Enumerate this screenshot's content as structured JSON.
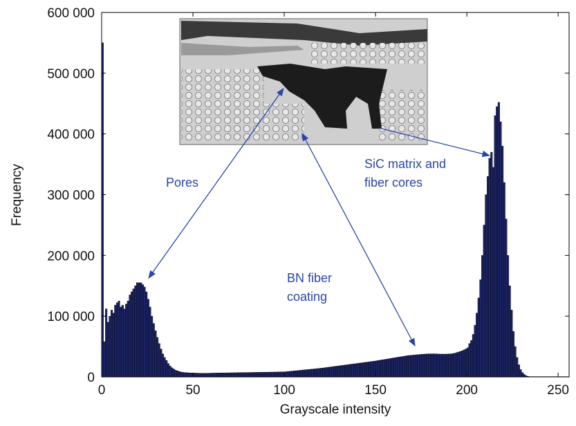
{
  "chart_data": {
    "type": "histogram",
    "xlabel": "Grayscale intensity",
    "ylabel": "Frequency",
    "color": "#1c2466",
    "bins": [
      0,
      1,
      2,
      3,
      4,
      5,
      6,
      7,
      8,
      9,
      10,
      11,
      12,
      13,
      14,
      15,
      16,
      17,
      18,
      19,
      20,
      21,
      22,
      23,
      24,
      25,
      26,
      27,
      28,
      29,
      30,
      31,
      32,
      33,
      34,
      35,
      36,
      37,
      38,
      39,
      40,
      41,
      42,
      43,
      44,
      45,
      46,
      47,
      48,
      49,
      50,
      51,
      52,
      53,
      54,
      55,
      56,
      57,
      58,
      59,
      60,
      61,
      62,
      63,
      64,
      65,
      66,
      67,
      68,
      69,
      70,
      71,
      72,
      73,
      74,
      75,
      76,
      77,
      78,
      79,
      80,
      81,
      82,
      83,
      84,
      85,
      86,
      87,
      88,
      89,
      90,
      91,
      92,
      93,
      94,
      95,
      96,
      97,
      98,
      99,
      100,
      101,
      102,
      103,
      104,
      105,
      106,
      107,
      108,
      109,
      110,
      111,
      112,
      113,
      114,
      115,
      116,
      117,
      118,
      119,
      120,
      121,
      122,
      123,
      124,
      125,
      126,
      127,
      128,
      129,
      130,
      131,
      132,
      133,
      134,
      135,
      136,
      137,
      138,
      139,
      140,
      141,
      142,
      143,
      144,
      145,
      146,
      147,
      148,
      149,
      150,
      151,
      152,
      153,
      154,
      155,
      156,
      157,
      158,
      159,
      160,
      161,
      162,
      163,
      164,
      165,
      166,
      167,
      168,
      169,
      170,
      171,
      172,
      173,
      174,
      175,
      176,
      177,
      178,
      179,
      180,
      181,
      182,
      183,
      184,
      185,
      186,
      187,
      188,
      189,
      190,
      191,
      192,
      193,
      194,
      195,
      196,
      197,
      198,
      199,
      200,
      201,
      202,
      203,
      204,
      205,
      206,
      207,
      208,
      209,
      210,
      211,
      212,
      213,
      214,
      215,
      216,
      217,
      218,
      219,
      220,
      221,
      222,
      223,
      224,
      225,
      226,
      227,
      228,
      229,
      230,
      231,
      232,
      233,
      234,
      235,
      236,
      237,
      238,
      239,
      240,
      241,
      242,
      243,
      244,
      245,
      246,
      247,
      248,
      249,
      250,
      251,
      252,
      253,
      254,
      255,
      256
    ],
    "values": [
      550000,
      58000,
      112000,
      90000,
      100000,
      110000,
      105000,
      118000,
      122000,
      125000,
      115000,
      118000,
      112000,
      120000,
      125000,
      135000,
      140000,
      145000,
      150000,
      155000,
      155000,
      155000,
      152000,
      148000,
      140000,
      128000,
      115000,
      100000,
      88000,
      76000,
      65000,
      55000,
      46000,
      38000,
      32000,
      27000,
      22000,
      18000,
      15000,
      13000,
      11000,
      10000,
      9000,
      8000,
      7500,
      7200,
      7000,
      6800,
      6600,
      6500,
      6400,
      6300,
      6200,
      6100,
      6000,
      6000,
      6000,
      6000,
      6100,
      6200,
      6300,
      6300,
      6400,
      6400,
      6500,
      6500,
      6600,
      6600,
      6700,
      6700,
      6800,
      6800,
      6900,
      6900,
      7000,
      7000,
      7100,
      7100,
      7200,
      7200,
      7300,
      7300,
      7400,
      7400,
      7500,
      7500,
      7600,
      7600,
      7700,
      7700,
      7800,
      7800,
      7900,
      7900,
      8000,
      8000,
      8100,
      8100,
      8200,
      8200,
      8400,
      8700,
      9000,
      9300,
      9600,
      9900,
      10200,
      10500,
      10800,
      11100,
      11400,
      11700,
      12000,
      12300,
      12600,
      12900,
      13200,
      13500,
      13800,
      14100,
      14400,
      14800,
      15200,
      15600,
      16000,
      16400,
      16800,
      17200,
      17600,
      18000,
      18400,
      18800,
      19200,
      19600,
      20000,
      20400,
      20800,
      21200,
      21600,
      22000,
      22400,
      22800,
      23200,
      23600,
      24000,
      24400,
      24800,
      25200,
      25600,
      26000,
      26500,
      27000,
      27500,
      28000,
      28500,
      29000,
      29500,
      30000,
      30500,
      31000,
      31500,
      32000,
      32500,
      33000,
      33500,
      34000,
      34500,
      35000,
      35300,
      35600,
      35900,
      36200,
      36500,
      36800,
      37000,
      37200,
      37400,
      37600,
      37800,
      38000,
      38000,
      38000,
      38000,
      37800,
      37600,
      37500,
      37500,
      37500,
      37500,
      37600,
      37800,
      38000,
      38500,
      39000,
      40000,
      41000,
      42000,
      43000,
      44500,
      46000,
      48000,
      55000,
      60000,
      70000,
      85000,
      105000,
      130000,
      160000,
      200000,
      250000,
      300000,
      330000,
      360000,
      370000,
      345000,
      430000,
      445000,
      452000,
      420000,
      380000,
      320000,
      260000,
      200000,
      150000,
      110000,
      75000,
      50000,
      32000,
      20000,
      12000,
      7000,
      4000,
      2000,
      1000,
      500,
      500,
      500,
      500,
      500,
      500,
      500,
      500,
      500,
      500,
      500,
      500,
      500,
      500,
      500,
      500,
      500,
      500,
      500,
      500,
      500,
      500
    ],
    "xlim": [
      0,
      256
    ],
    "ylim": [
      0,
      600000
    ],
    "xticks": [
      0,
      50,
      100,
      150,
      200,
      250
    ],
    "yticks": [
      0,
      {
        "value": 100000,
        "label": "100 000"
      },
      {
        "value": 200000,
        "label": "200 000"
      },
      {
        "value": 300000,
        "label": "300 000"
      },
      {
        "value": 400000,
        "label": "400 000"
      },
      {
        "value": 500000,
        "label": "500 000"
      },
      {
        "value": 600000,
        "label": "600 000"
      }
    ],
    "annotations": [
      {
        "lines": [
          "Pores"
        ]
      },
      {
        "lines": [
          "BN fiber",
          "coating"
        ]
      },
      {
        "lines": [
          "SiC matrix and",
          "fiber cores"
        ]
      }
    ]
  }
}
